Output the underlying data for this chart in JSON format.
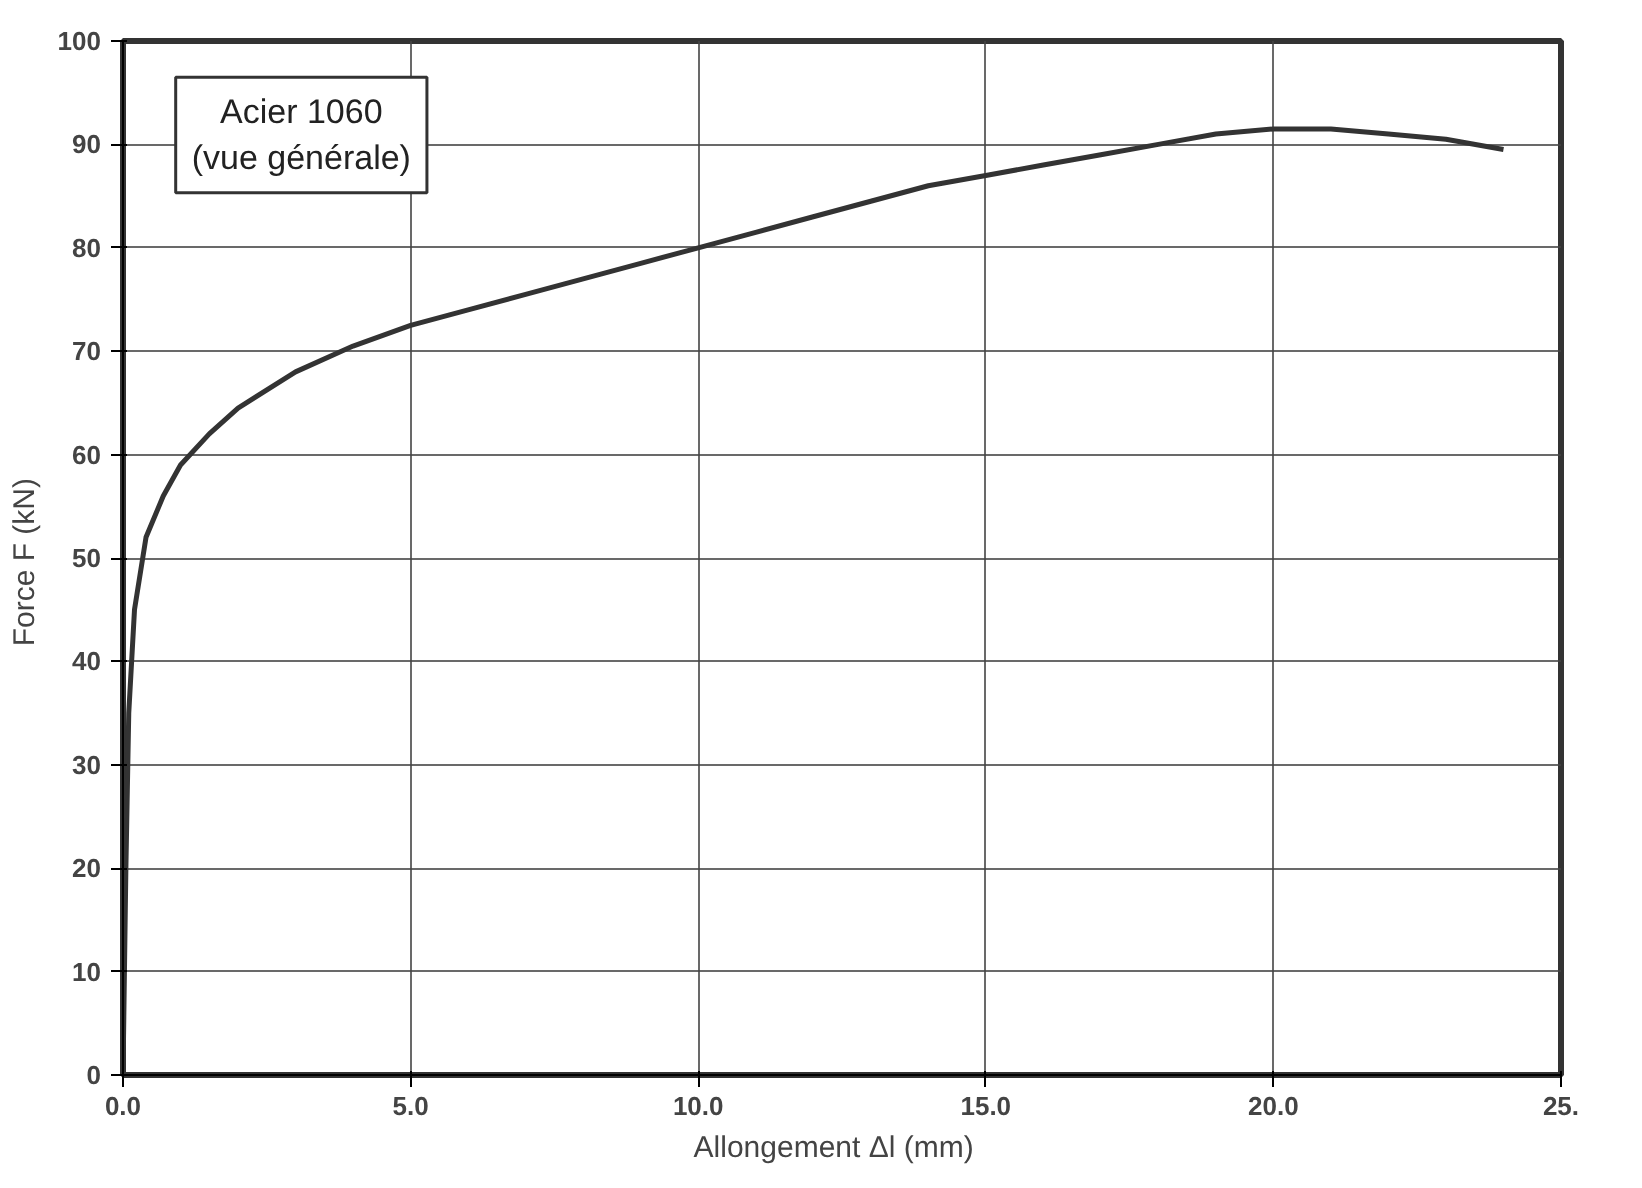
{
  "chart_data": {
    "type": "line",
    "xlabel": "Allongement Δl   (mm)",
    "ylabel": "Force F  (kN)",
    "annotations": [
      "Acier 1060\n(vue générale)"
    ],
    "xlim": [
      0,
      25
    ],
    "ylim": [
      0,
      100
    ],
    "xticks": [
      {
        "value": 0,
        "label": "0.0"
      },
      {
        "value": 5,
        "label": "5.0"
      },
      {
        "value": 10,
        "label": "10.0"
      },
      {
        "value": 15,
        "label": "15.0"
      },
      {
        "value": 20,
        "label": "20.0"
      },
      {
        "value": 25,
        "label": "25."
      }
    ],
    "yticks": [
      0,
      10,
      20,
      30,
      40,
      50,
      60,
      70,
      80,
      90,
      100
    ],
    "grid": true,
    "marker": "none",
    "line_style": "solid",
    "series": [
      {
        "color": "#333333",
        "x": [
          0,
          0.05,
          0.1,
          0.2,
          0.4,
          0.7,
          1,
          1.5,
          2,
          3,
          4,
          5,
          6,
          7,
          8,
          9,
          10,
          11,
          12,
          13,
          14,
          15,
          16,
          17,
          18,
          19,
          20,
          21,
          22,
          23,
          24
        ],
        "values": [
          0,
          20,
          35,
          45,
          52,
          56,
          59,
          62,
          64.5,
          68,
          70.5,
          72.5,
          74,
          75.5,
          77,
          78.5,
          80,
          81.5,
          83,
          84.5,
          86,
          87,
          88,
          89,
          90,
          91,
          91.5,
          91.5,
          91,
          90.5,
          89.5
        ]
      }
    ]
  }
}
